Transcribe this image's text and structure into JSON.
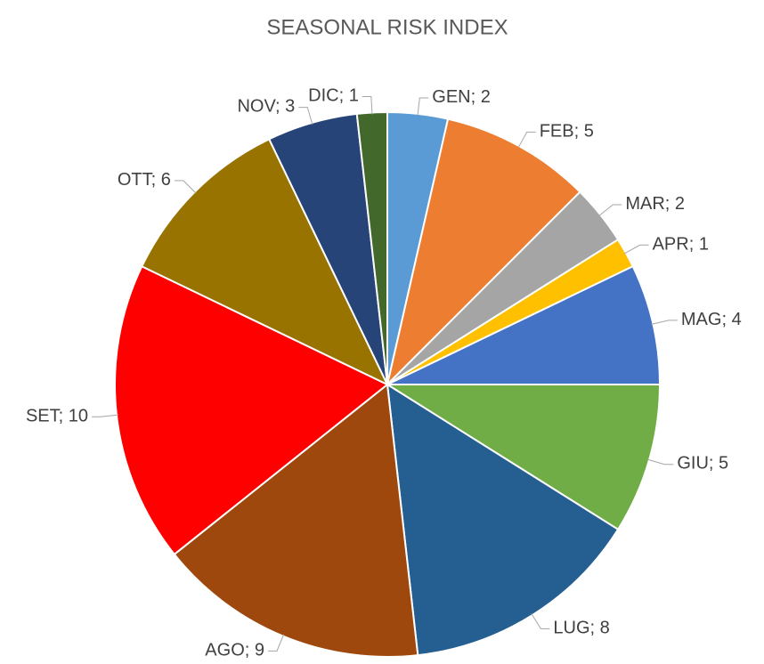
{
  "chart_data": {
    "type": "pie",
    "title": "SEASONAL RISK INDEX",
    "categories": [
      "GEN",
      "FEB",
      "MAR",
      "APR",
      "MAG",
      "GIU",
      "LUG",
      "AGO",
      "SET",
      "OTT",
      "NOV",
      "DIC"
    ],
    "values": [
      2,
      5,
      2,
      1,
      4,
      5,
      8,
      9,
      10,
      6,
      3,
      1
    ],
    "colors": [
      "#5b9bd5",
      "#ed7d31",
      "#a5a5a5",
      "#ffc000",
      "#4472c4",
      "#70ad47",
      "#255e91",
      "#9e480e",
      "#ff0000",
      "#997300",
      "#264478",
      "#43682b"
    ],
    "data_label_separator": "; "
  }
}
